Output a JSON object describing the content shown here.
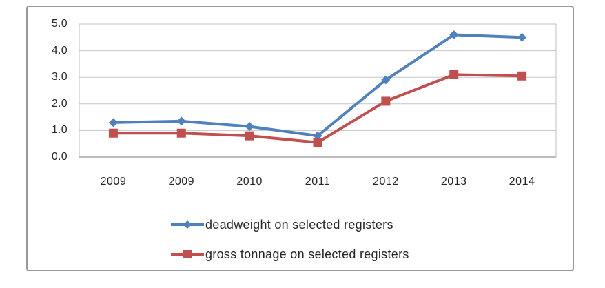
{
  "chart_data": {
    "type": "line",
    "title": "",
    "xlabel": "",
    "ylabel": "",
    "categories": [
      "2009",
      "2009",
      "2010",
      "2011",
      "2012",
      "2013",
      "2014"
    ],
    "series": [
      {
        "name": "deadweight on selected registers",
        "color": "#4F81BD",
        "marker": "diamond",
        "values": [
          1.3,
          1.35,
          1.15,
          0.8,
          2.9,
          4.6,
          4.5
        ]
      },
      {
        "name": "gross tonnage on selected registers",
        "color": "#C0504D",
        "marker": "square",
        "values": [
          0.9,
          0.9,
          0.8,
          0.55,
          2.1,
          3.1,
          3.05
        ]
      }
    ],
    "ylim": [
      0,
      5
    ],
    "ytick_step": 1,
    "ytick_labels": [
      "0.0",
      "1.0",
      "2.0",
      "3.0",
      "4.0",
      "5.0"
    ],
    "grid": true,
    "legend_position": "bottom",
    "colors": {
      "gridline": "#c6c6c6",
      "plot_border": "#bfbfbf",
      "axis_line": "#a6a6a6",
      "figure_border": "#999999",
      "text": "#262626"
    }
  }
}
